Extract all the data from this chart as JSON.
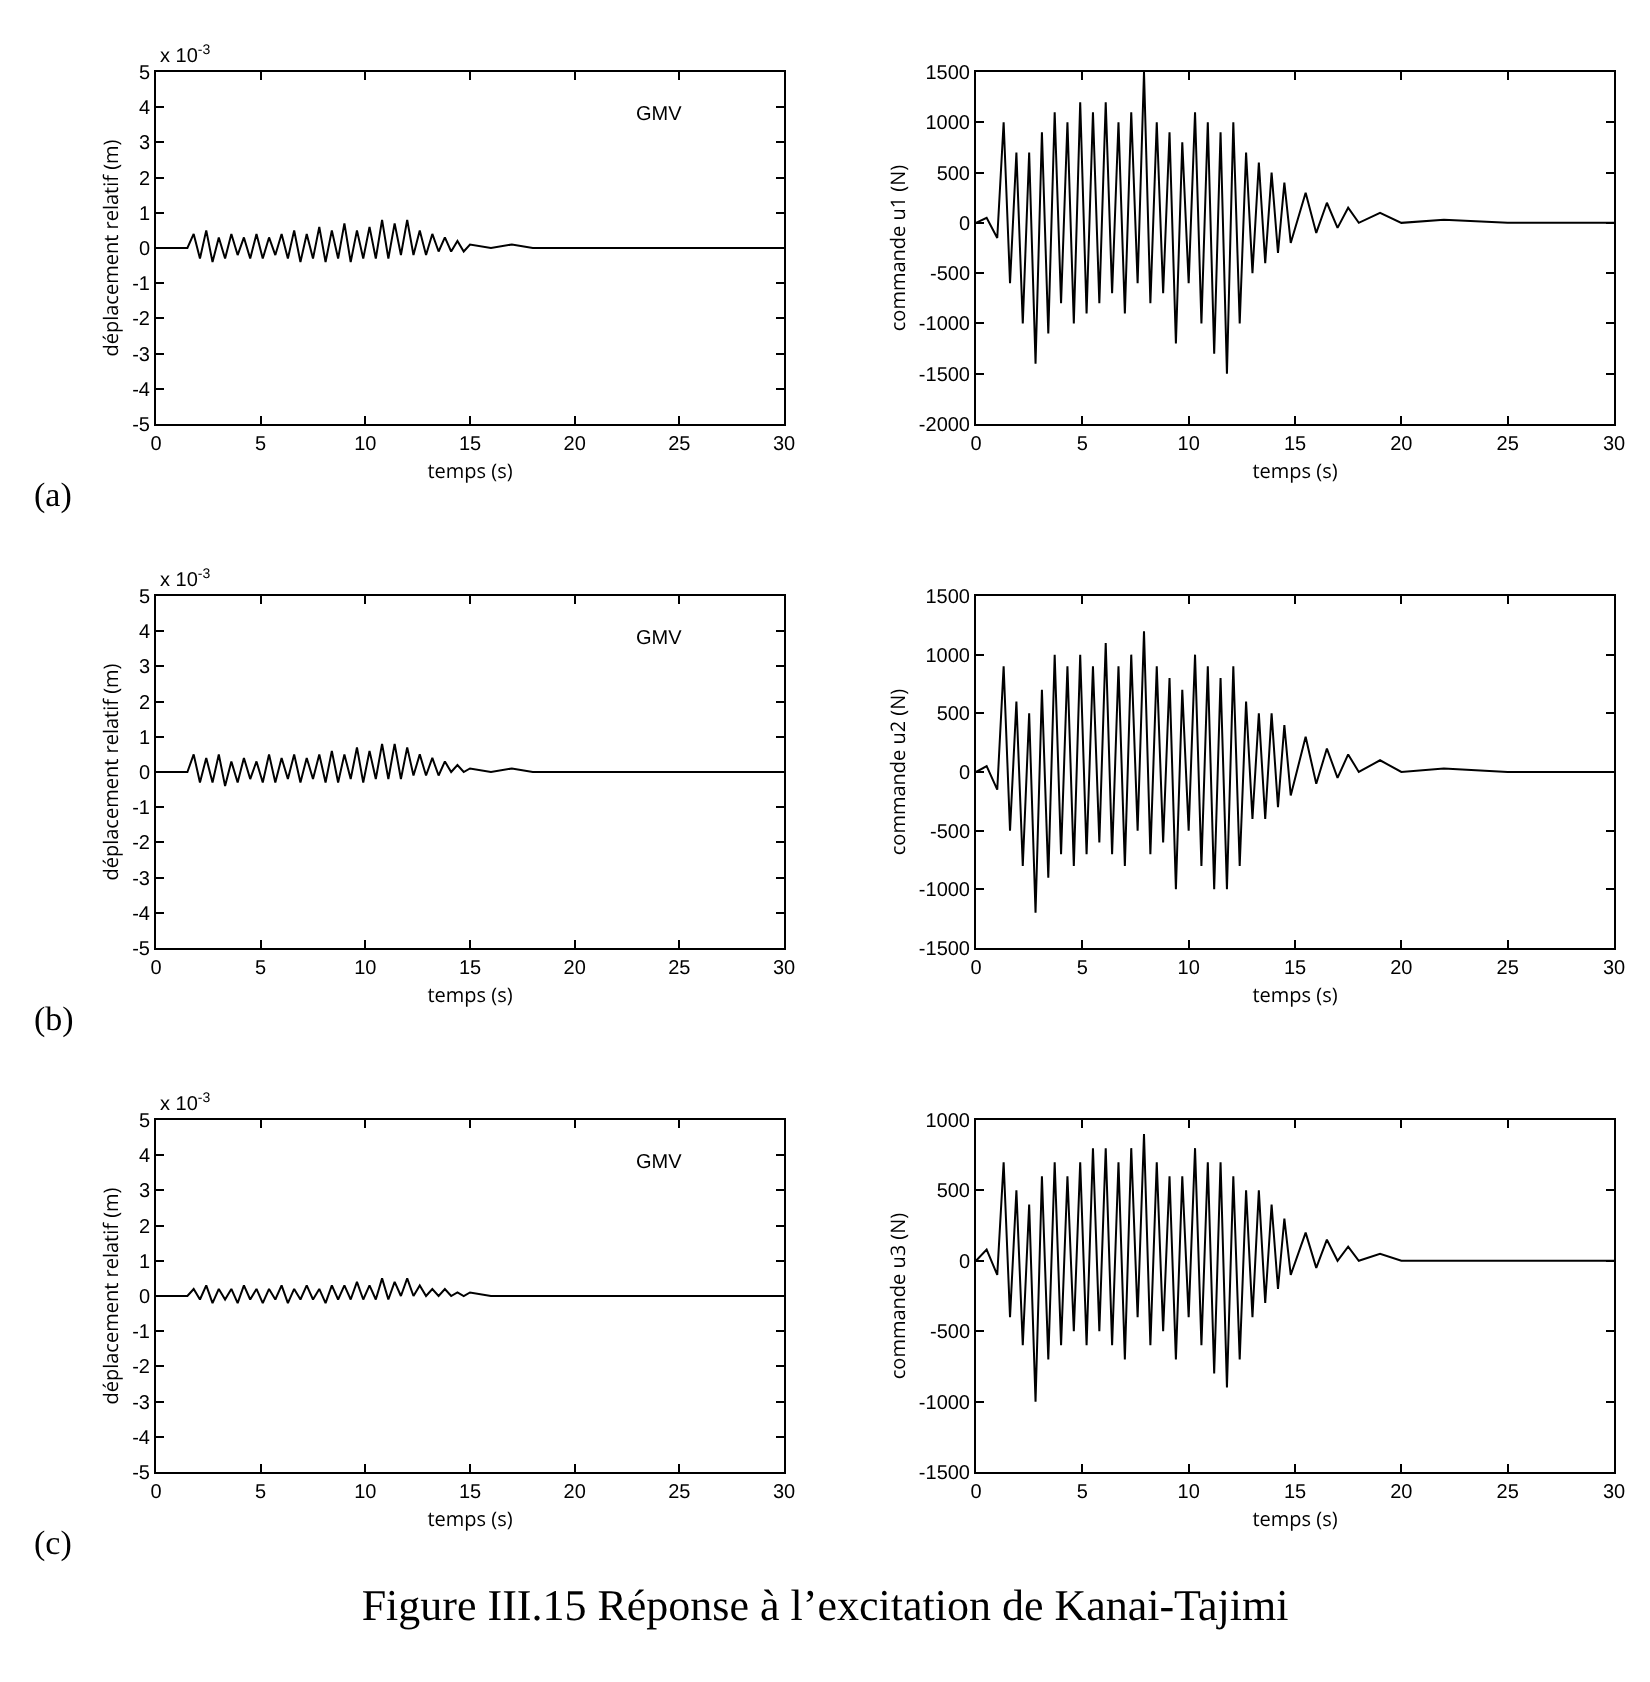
{
  "chart_data": [
    {
      "type": "line",
      "xlabel": "temps (s)",
      "ylabel": "déplacement relatif (m)",
      "xlim": [
        0,
        30
      ],
      "xticks": [
        0,
        5,
        10,
        15,
        20,
        25,
        30
      ],
      "ylim": [
        -5,
        5
      ],
      "yticks": [
        -5,
        -4,
        -3,
        -2,
        -1,
        0,
        1,
        2,
        3,
        4,
        5
      ],
      "annotations": [
        "GMV",
        "x 10$^{-3}$",
        "(a)"
      ],
      "series": [
        {
          "color": "#000000",
          "x": [
            0,
            1.5,
            1.8,
            2.1,
            2.4,
            2.7,
            3.0,
            3.3,
            3.6,
            3.9,
            4.2,
            4.5,
            4.8,
            5.1,
            5.4,
            5.7,
            6.0,
            6.3,
            6.6,
            6.9,
            7.2,
            7.5,
            7.8,
            8.1,
            8.4,
            8.7,
            9.0,
            9.3,
            9.6,
            9.9,
            10.2,
            10.5,
            10.8,
            11.1,
            11.4,
            11.7,
            12.0,
            12.3,
            12.6,
            12.9,
            13.2,
            13.5,
            13.8,
            14.1,
            14.4,
            14.7,
            15,
            16,
            17,
            18,
            20,
            30
          ],
          "values": [
            0,
            0,
            0.4,
            -0.3,
            0.5,
            -0.4,
            0.3,
            -0.3,
            0.4,
            -0.2,
            0.3,
            -0.3,
            0.4,
            -0.3,
            0.3,
            -0.2,
            0.4,
            -0.3,
            0.5,
            -0.4,
            0.4,
            -0.3,
            0.6,
            -0.4,
            0.5,
            -0.3,
            0.7,
            -0.4,
            0.5,
            -0.3,
            0.6,
            -0.3,
            0.8,
            -0.3,
            0.7,
            -0.2,
            0.8,
            -0.2,
            0.5,
            -0.2,
            0.4,
            -0.1,
            0.3,
            -0.1,
            0.2,
            -0.1,
            0.1,
            0,
            0.1,
            0,
            0,
            0
          ]
        }
      ]
    },
    {
      "type": "line",
      "xlabel": "temps (s)",
      "ylabel": "commande u1 (N)",
      "xlim": [
        0,
        30
      ],
      "xticks": [
        0,
        5,
        10,
        15,
        20,
        25,
        30
      ],
      "ylim": [
        -2000,
        1500
      ],
      "yticks": [
        -2000,
        -1500,
        -1000,
        -500,
        0,
        500,
        1000,
        1500
      ],
      "series": [
        {
          "color": "#000000",
          "x": [
            0,
            0.5,
            1,
            1.3,
            1.6,
            1.9,
            2.2,
            2.5,
            2.8,
            3.1,
            3.4,
            3.7,
            4.0,
            4.3,
            4.6,
            4.9,
            5.2,
            5.5,
            5.8,
            6.1,
            6.4,
            6.7,
            7.0,
            7.3,
            7.6,
            7.9,
            8.2,
            8.5,
            8.8,
            9.1,
            9.4,
            9.7,
            10.0,
            10.3,
            10.6,
            10.9,
            11.2,
            11.5,
            11.8,
            12.1,
            12.4,
            12.7,
            13.0,
            13.3,
            13.6,
            13.9,
            14.2,
            14.5,
            14.8,
            15.5,
            16,
            16.5,
            17,
            17.5,
            18,
            19,
            20,
            22,
            25,
            30
          ],
          "values": [
            0,
            50,
            -150,
            1000,
            -600,
            700,
            -1000,
            700,
            -1400,
            900,
            -1100,
            1100,
            -800,
            1000,
            -1000,
            1200,
            -900,
            1100,
            -800,
            1200,
            -700,
            1000,
            -900,
            1100,
            -600,
            1500,
            -800,
            1000,
            -700,
            900,
            -1200,
            800,
            -600,
            1100,
            -1000,
            1000,
            -1300,
            900,
            -1500,
            1000,
            -1000,
            700,
            -500,
            600,
            -400,
            500,
            -300,
            400,
            -200,
            300,
            -100,
            200,
            -50,
            150,
            0,
            100,
            0,
            30,
            0,
            0
          ]
        }
      ]
    },
    {
      "type": "line",
      "xlabel": "temps (s)",
      "ylabel": "déplacement relatif (m)",
      "xlim": [
        0,
        30
      ],
      "xticks": [
        0,
        5,
        10,
        15,
        20,
        25,
        30
      ],
      "ylim": [
        -5,
        5
      ],
      "yticks": [
        -5,
        -4,
        -3,
        -2,
        -1,
        0,
        1,
        2,
        3,
        4,
        5
      ],
      "annotations": [
        "GMV",
        "x 10$^{-3}$",
        "(b)"
      ],
      "series": [
        {
          "color": "#000000",
          "x": [
            0,
            1.5,
            1.8,
            2.1,
            2.4,
            2.7,
            3.0,
            3.3,
            3.6,
            3.9,
            4.2,
            4.5,
            4.8,
            5.1,
            5.4,
            5.7,
            6.0,
            6.3,
            6.6,
            6.9,
            7.2,
            7.5,
            7.8,
            8.1,
            8.4,
            8.7,
            9.0,
            9.3,
            9.6,
            9.9,
            10.2,
            10.5,
            10.8,
            11.1,
            11.4,
            11.7,
            12.0,
            12.3,
            12.6,
            12.9,
            13.2,
            13.5,
            13.8,
            14.1,
            14.4,
            14.7,
            15,
            16,
            17,
            18,
            20,
            30
          ],
          "values": [
            0,
            0,
            0.5,
            -0.3,
            0.4,
            -0.3,
            0.5,
            -0.4,
            0.3,
            -0.3,
            0.4,
            -0.2,
            0.3,
            -0.3,
            0.5,
            -0.3,
            0.4,
            -0.2,
            0.5,
            -0.3,
            0.4,
            -0.2,
            0.5,
            -0.3,
            0.6,
            -0.3,
            0.5,
            -0.2,
            0.7,
            -0.3,
            0.6,
            -0.2,
            0.8,
            -0.2,
            0.8,
            -0.2,
            0.7,
            -0.1,
            0.5,
            -0.1,
            0.4,
            -0.1,
            0.3,
            0,
            0.2,
            0,
            0.1,
            0,
            0.1,
            0,
            0,
            0
          ]
        }
      ]
    },
    {
      "type": "line",
      "xlabel": "temps (s)",
      "ylabel": "commande u2 (N)",
      "xlim": [
        0,
        30
      ],
      "xticks": [
        0,
        5,
        10,
        15,
        20,
        25,
        30
      ],
      "ylim": [
        -1500,
        1500
      ],
      "yticks": [
        -1500,
        -1000,
        -500,
        0,
        500,
        1000,
        1500
      ],
      "series": [
        {
          "color": "#000000",
          "x": [
            0,
            0.5,
            1,
            1.3,
            1.6,
            1.9,
            2.2,
            2.5,
            2.8,
            3.1,
            3.4,
            3.7,
            4.0,
            4.3,
            4.6,
            4.9,
            5.2,
            5.5,
            5.8,
            6.1,
            6.4,
            6.7,
            7.0,
            7.3,
            7.6,
            7.9,
            8.2,
            8.5,
            8.8,
            9.1,
            9.4,
            9.7,
            10.0,
            10.3,
            10.6,
            10.9,
            11.2,
            11.5,
            11.8,
            12.1,
            12.4,
            12.7,
            13.0,
            13.3,
            13.6,
            13.9,
            14.2,
            14.5,
            14.8,
            15.5,
            16,
            16.5,
            17,
            17.5,
            18,
            19,
            20,
            22,
            25,
            30
          ],
          "values": [
            0,
            50,
            -150,
            900,
            -500,
            600,
            -800,
            500,
            -1200,
            700,
            -900,
            1000,
            -700,
            900,
            -800,
            1000,
            -700,
            900,
            -600,
            1100,
            -700,
            900,
            -800,
            1000,
            -500,
            1200,
            -700,
            900,
            -600,
            800,
            -1000,
            700,
            -500,
            1000,
            -800,
            900,
            -1000,
            800,
            -1000,
            900,
            -800,
            600,
            -400,
            500,
            -400,
            500,
            -300,
            400,
            -200,
            300,
            -100,
            200,
            -50,
            150,
            0,
            100,
            0,
            30,
            0,
            0
          ]
        }
      ]
    },
    {
      "type": "line",
      "xlabel": "temps (s)",
      "ylabel": "déplacement relatif (m)",
      "xlim": [
        0,
        30
      ],
      "xticks": [
        0,
        5,
        10,
        15,
        20,
        25,
        30
      ],
      "ylim": [
        -5,
        5
      ],
      "yticks": [
        -5,
        -4,
        -3,
        -2,
        -1,
        0,
        1,
        2,
        3,
        4,
        5
      ],
      "annotations": [
        "GMV",
        "x 10$^{-3}$",
        "(c)"
      ],
      "series": [
        {
          "color": "#000000",
          "x": [
            0,
            1.5,
            1.8,
            2.1,
            2.4,
            2.7,
            3.0,
            3.3,
            3.6,
            3.9,
            4.2,
            4.5,
            4.8,
            5.1,
            5.4,
            5.7,
            6.0,
            6.3,
            6.6,
            6.9,
            7.2,
            7.5,
            7.8,
            8.1,
            8.4,
            8.7,
            9.0,
            9.3,
            9.6,
            9.9,
            10.2,
            10.5,
            10.8,
            11.1,
            11.4,
            11.7,
            12.0,
            12.3,
            12.6,
            12.9,
            13.2,
            13.5,
            13.8,
            14.1,
            14.4,
            14.7,
            15,
            16,
            17,
            18,
            20,
            30
          ],
          "values": [
            0,
            0,
            0.2,
            -0.1,
            0.3,
            -0.2,
            0.2,
            -0.1,
            0.2,
            -0.2,
            0.3,
            -0.1,
            0.2,
            -0.2,
            0.2,
            -0.1,
            0.3,
            -0.2,
            0.2,
            -0.1,
            0.3,
            -0.1,
            0.2,
            -0.2,
            0.3,
            -0.1,
            0.3,
            -0.1,
            0.4,
            -0.1,
            0.3,
            -0.1,
            0.5,
            -0.1,
            0.4,
            0,
            0.5,
            0,
            0.3,
            0,
            0.2,
            0,
            0.2,
            0,
            0.1,
            0,
            0.1,
            0,
            0,
            0,
            0,
            0
          ]
        }
      ]
    },
    {
      "type": "line",
      "xlabel": "temps (s)",
      "ylabel": "commande u3 (N)",
      "xlim": [
        0,
        30
      ],
      "xticks": [
        0,
        5,
        10,
        15,
        20,
        25,
        30
      ],
      "ylim": [
        -1500,
        1000
      ],
      "yticks": [
        -1500,
        -1000,
        -500,
        0,
        500,
        1000
      ],
      "series": [
        {
          "color": "#000000",
          "x": [
            0,
            0.5,
            1,
            1.3,
            1.6,
            1.9,
            2.2,
            2.5,
            2.8,
            3.1,
            3.4,
            3.7,
            4.0,
            4.3,
            4.6,
            4.9,
            5.2,
            5.5,
            5.8,
            6.1,
            6.4,
            6.7,
            7.0,
            7.3,
            7.6,
            7.9,
            8.2,
            8.5,
            8.8,
            9.1,
            9.4,
            9.7,
            10.0,
            10.3,
            10.6,
            10.9,
            11.2,
            11.5,
            11.8,
            12.1,
            12.4,
            12.7,
            13.0,
            13.3,
            13.6,
            13.9,
            14.2,
            14.5,
            14.8,
            15.5,
            16,
            16.5,
            17,
            17.5,
            18,
            19,
            20,
            22,
            25,
            30
          ],
          "values": [
            0,
            80,
            -100,
            700,
            -400,
            500,
            -600,
            400,
            -1000,
            600,
            -700,
            700,
            -600,
            600,
            -500,
            700,
            -600,
            800,
            -500,
            800,
            -600,
            700,
            -700,
            800,
            -400,
            900,
            -600,
            700,
            -500,
            600,
            -700,
            600,
            -400,
            800,
            -600,
            700,
            -800,
            700,
            -900,
            600,
            -700,
            500,
            -400,
            500,
            -300,
            400,
            -200,
            300,
            -100,
            200,
            -50,
            150,
            0,
            100,
            0,
            50,
            0,
            0,
            0,
            0
          ]
        }
      ]
    },
    {
      "type": "other",
      "annotations": [
        "Figure III.15 Réponse à l’excitation de Kanai-Tajimi"
      ]
    }
  ]
}
